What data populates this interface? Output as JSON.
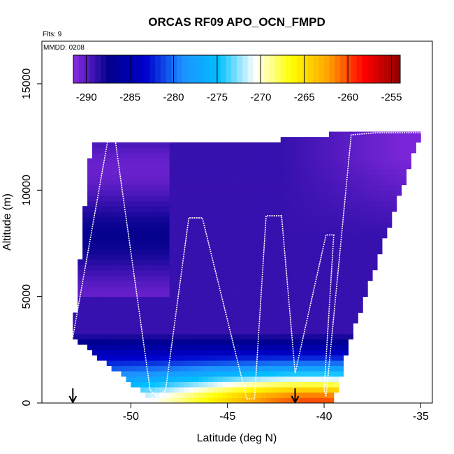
{
  "chart_data": {
    "type": "heatmap",
    "title": "ORCAS RF09 APO_OCN_FMPD",
    "flights_note": "Flts: 9",
    "mmdd_note": "MMDD: 0208",
    "xlabel": "Latitude (deg N)",
    "ylabel": "Altitude (m)",
    "xlim": [
      -54.6,
      -34.4
    ],
    "ylim": [
      0,
      17000
    ],
    "x_ticks": [
      -50,
      -45,
      -40,
      -35
    ],
    "x_tick_labels": [
      "-50",
      "-45",
      "-40",
      "-35"
    ],
    "y_ticks": [
      0,
      5000,
      10000,
      15000
    ],
    "y_tick_labels": [
      "0",
      "5000",
      "10000",
      "15000"
    ],
    "colorbar": {
      "min": -291.5,
      "max": -254,
      "ticks": [
        -290,
        -285,
        -280,
        -275,
        -270,
        -265,
        -260,
        -255
      ],
      "tick_labels": [
        "-290",
        "-285",
        "-280",
        "-275",
        "-270",
        "-265",
        "-260",
        "-255"
      ],
      "palette": [
        "#8a2be2",
        "#00008b",
        "#0000cd",
        "#1e90ff",
        "#00bfff",
        "#ffffff",
        "#ffff00",
        "#ffa500",
        "#ff0000",
        "#8b0000"
      ]
    },
    "curtain_outline": {
      "lat": [
        -53.0,
        -52.2,
        -52.0,
        -51.0,
        -43.0,
        -38.0,
        -35.0,
        -35.0,
        -38.7,
        -39.5,
        -48.7,
        -53.0
      ],
      "alt": [
        3100,
        10900,
        12300,
        12300,
        12300,
        12800,
        12800,
        12700,
        2800,
        0,
        0,
        3100
      ]
    },
    "field_model": {
      "plume_center_lat": -40.5,
      "plume_half_width": 7.5,
      "plume_height_m": 1400,
      "plume_max": -262,
      "low_alt_background": -275,
      "mid_alt_min": -289,
      "upper_alt": -287,
      "north_upper_min": -291
    },
    "flight_track": {
      "lat": [
        -53.0,
        -51.2,
        -50.8,
        -49.0,
        -48.6,
        -48.2,
        -47.0,
        -46.3,
        -44.0,
        -43.6,
        -43.0,
        -42.2,
        -41.5,
        -39.9,
        -39.5,
        -40.0,
        -39.9,
        -38.6,
        -37.3,
        -35.0
      ],
      "alt": [
        3100,
        12300,
        12300,
        600,
        300,
        600,
        8700,
        8700,
        200,
        200,
        8800,
        8800,
        1400,
        7900,
        7900,
        600,
        300,
        12600,
        12700,
        12700
      ]
    },
    "arrows": [
      {
        "lat": -53.0
      },
      {
        "lat": -41.5
      }
    ]
  }
}
